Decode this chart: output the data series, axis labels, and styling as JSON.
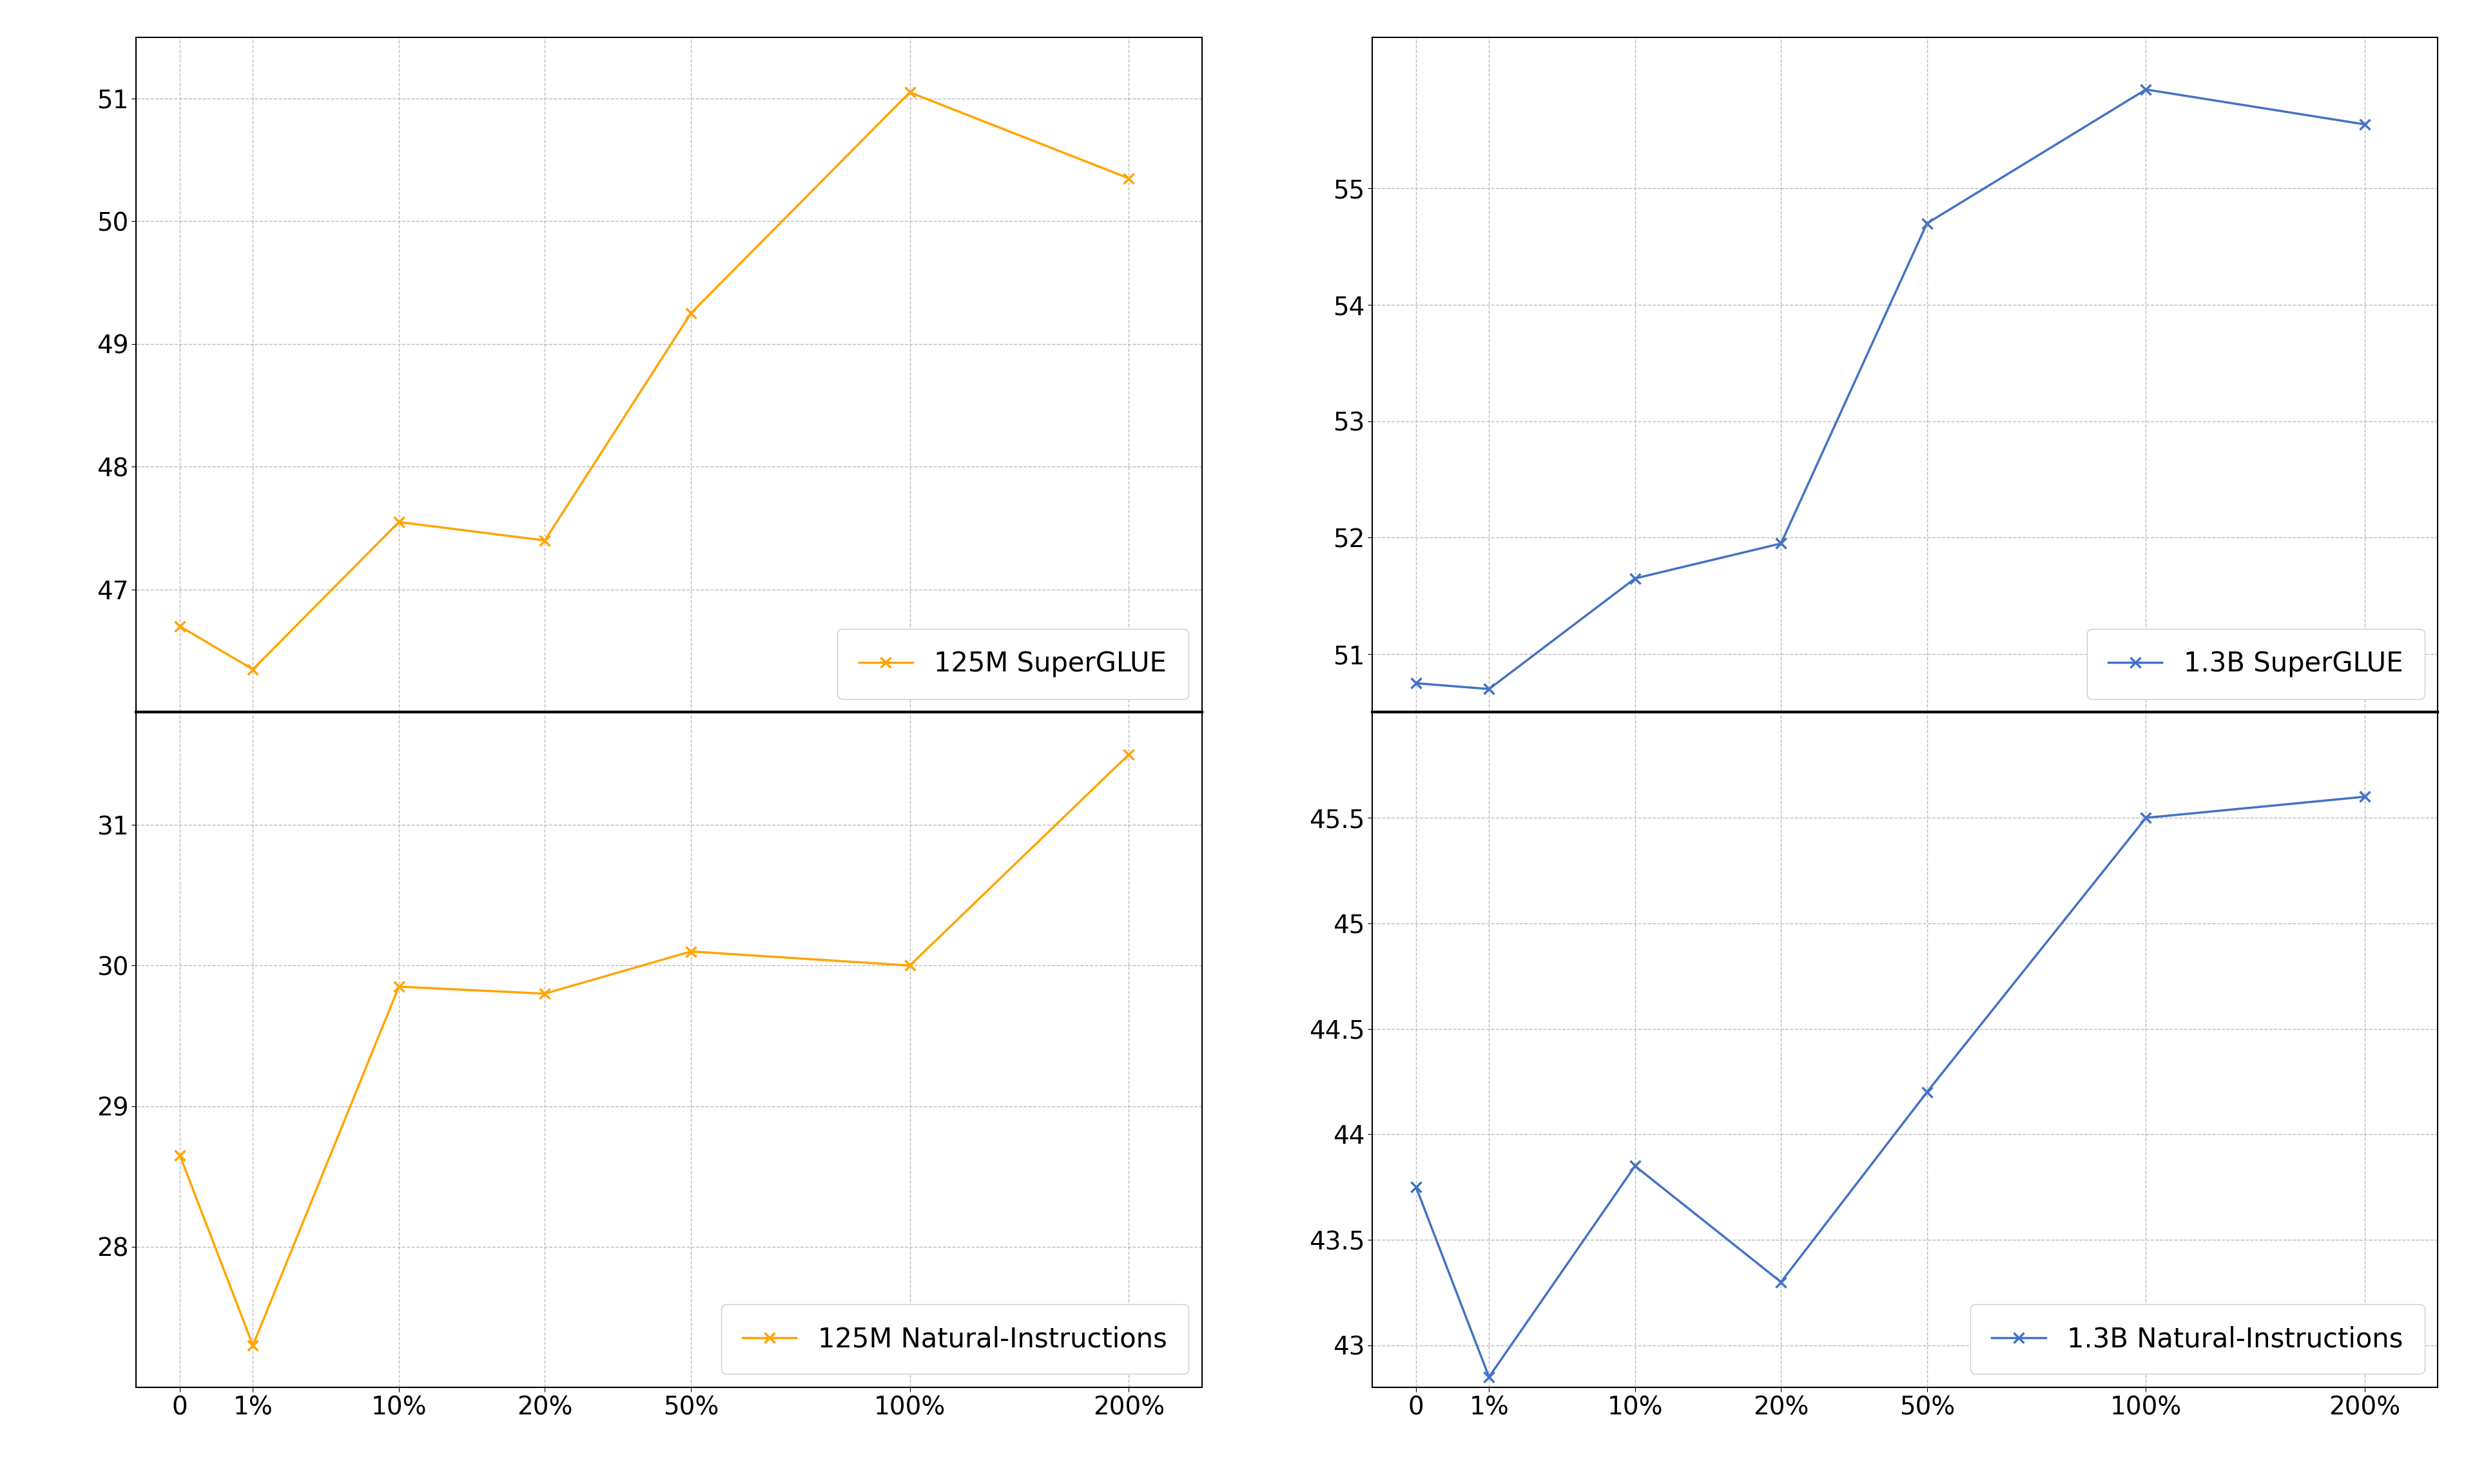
{
  "x_labels": [
    "0",
    "1%",
    "10%",
    "20%",
    "50%",
    "100%",
    "200%"
  ],
  "x_values": [
    0,
    0.5,
    1.5,
    2.5,
    3.5,
    5.0,
    6.5
  ],
  "superglue_125m": [
    46.7,
    46.35,
    47.55,
    47.4,
    49.25,
    51.05,
    50.35
  ],
  "superglue_125m_color": "#FFA500",
  "superglue_125m_label": "125M SuperGLUE",
  "natinst_125m": [
    28.65,
    27.3,
    29.85,
    29.8,
    30.1,
    30.0,
    31.5
  ],
  "natinst_125m_color": "#FFA500",
  "natinst_125m_label": "125M Natural-Instructions",
  "superglue_1b": [
    50.75,
    50.7,
    51.65,
    51.95,
    54.7,
    55.85,
    55.55
  ],
  "superglue_1b_color": "#4472C4",
  "superglue_1b_label": "1.3B SuperGLUE",
  "natinst_1b": [
    43.75,
    42.85,
    43.85,
    43.3,
    44.2,
    45.5,
    45.6
  ],
  "natinst_1b_color": "#4472C4",
  "natinst_1b_label": "1.3B Natural-Instructions",
  "superglue_125m_ylim": [
    46.0,
    51.5
  ],
  "superglue_125m_yticks": [
    47,
    48,
    49,
    50,
    51
  ],
  "natinst_125m_ylim": [
    27.0,
    31.8
  ],
  "natinst_125m_yticks": [
    28,
    29,
    30,
    31
  ],
  "superglue_1b_ylim": [
    50.5,
    56.3
  ],
  "superglue_1b_yticks": [
    51,
    52,
    53,
    54,
    55
  ],
  "natinst_1b_ylim": [
    42.8,
    46.0
  ],
  "natinst_1b_yticks": [
    43.0,
    43.5,
    44.0,
    44.5,
    45.0,
    45.5
  ],
  "grid_color": "#aaaaaa",
  "grid_linestyle": "--",
  "marker": "x",
  "linewidth": 2.5,
  "markersize": 12,
  "markeredgewidth": 2.5,
  "legend_fontsize": 30,
  "tick_fontsize": 28,
  "background_color": "#ffffff"
}
